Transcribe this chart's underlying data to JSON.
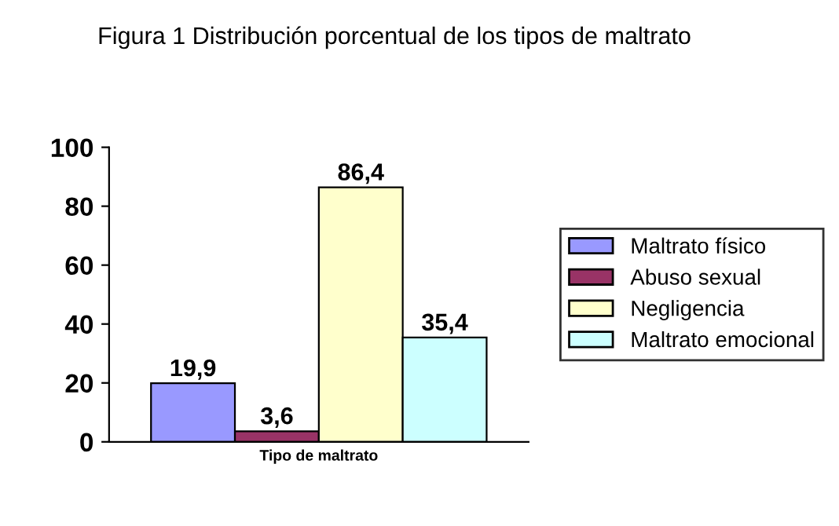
{
  "chart_data": {
    "type": "bar",
    "title": "Figura 1 Distribución porcentual de los tipos de maltrato",
    "categories": [
      "Tipo de maltrato"
    ],
    "series": [
      {
        "name": "Maltrato físico",
        "color": "#9999ff",
        "values": [
          19.9
        ],
        "value_labels": [
          "19,9"
        ]
      },
      {
        "name": "Abuso sexual",
        "color": "#993366",
        "values": [
          3.6
        ],
        "value_labels": [
          "3,6"
        ]
      },
      {
        "name": "Negligencia",
        "color": "#ffffcc",
        "values": [
          86.4
        ],
        "value_labels": [
          "86,4"
        ]
      },
      {
        "name": "Maltrato emocional",
        "color": "#ccffff",
        "values": [
          35.4
        ],
        "value_labels": [
          "35,4"
        ]
      }
    ],
    "ylim": [
      0,
      100
    ],
    "yticks": [
      0,
      20,
      40,
      60,
      80,
      100
    ],
    "legend": "right",
    "grid": false
  }
}
